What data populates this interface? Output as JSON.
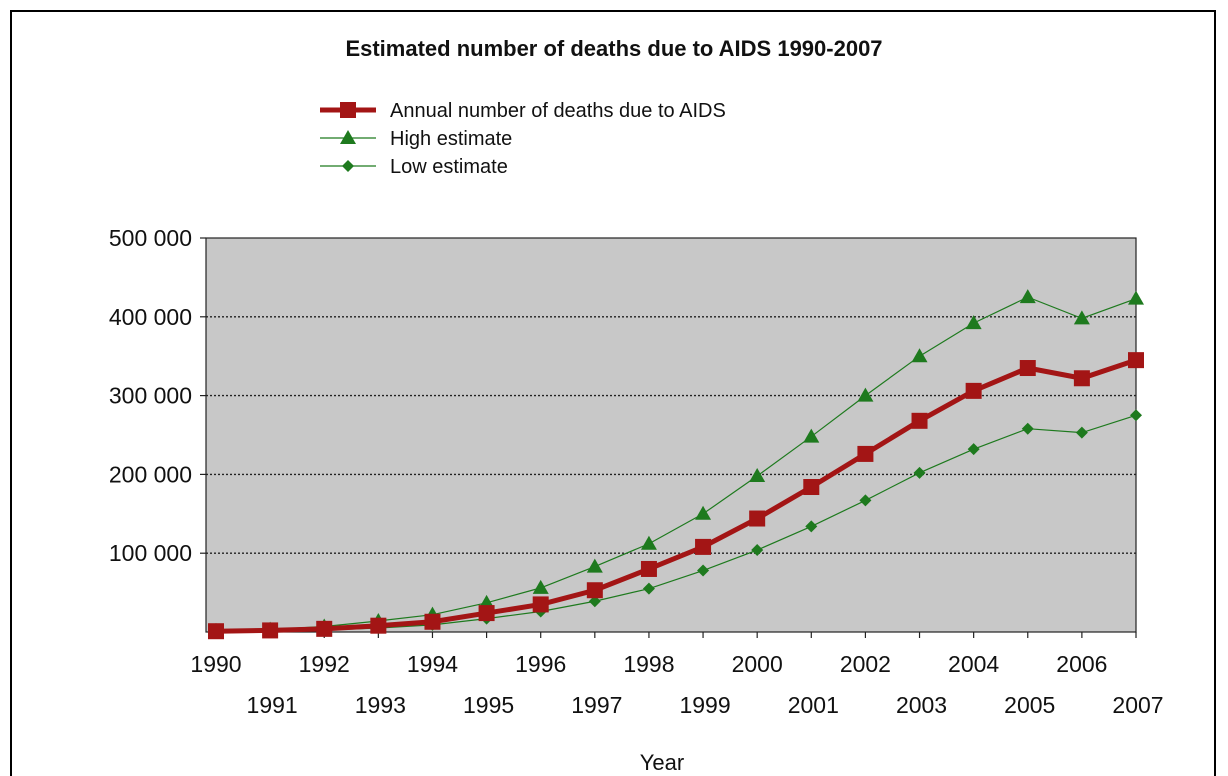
{
  "chart_data": {
    "type": "line",
    "title": "Estimated number of deaths due to AIDS 1990-2007",
    "xlabel": "Year",
    "ylabel": "",
    "ylim": [
      0,
      500000
    ],
    "x": [
      1990,
      1991,
      1992,
      1993,
      1994,
      1995,
      1996,
      1997,
      1998,
      1999,
      2000,
      2001,
      2002,
      2003,
      2004,
      2005,
      2006,
      2007
    ],
    "x_tick_labels_upper": [
      "1990",
      "1992",
      "1994",
      "1996",
      "1998",
      "2000",
      "2002",
      "2004",
      "2006"
    ],
    "x_tick_labels_lower": [
      "1991",
      "1993",
      "1995",
      "1997",
      "1999",
      "2001",
      "2003",
      "2005",
      "2007"
    ],
    "y_tick_labels": [
      "100 000",
      "200 000",
      "300 000",
      "400 000",
      "500 000"
    ],
    "y_ticks": [
      100000,
      200000,
      300000,
      400000,
      500000
    ],
    "grid": "horizontal dotted",
    "legend_position": "top",
    "plot_background": "#c8c8c8",
    "series": [
      {
        "name": "Annual number of deaths due to AIDS",
        "color": "#a31515",
        "marker": "square",
        "values": [
          1000,
          2000,
          4000,
          8000,
          13000,
          24000,
          35000,
          53000,
          80000,
          108000,
          144000,
          184000,
          226000,
          268000,
          306000,
          335000,
          322000,
          345000
        ]
      },
      {
        "name": "High estimate",
        "color": "#1e7a1e",
        "marker": "triangle",
        "values": [
          1500,
          3000,
          7000,
          14000,
          22000,
          37000,
          56000,
          83000,
          112000,
          150000,
          198000,
          248000,
          300000,
          350000,
          392000,
          425000,
          398000,
          423000
        ]
      },
      {
        "name": "Low estimate",
        "color": "#1e7a1e",
        "marker": "diamond",
        "values": [
          500,
          1000,
          2500,
          5000,
          9000,
          17000,
          26000,
          39000,
          55000,
          78000,
          104000,
          134000,
          167000,
          202000,
          232000,
          258000,
          253000,
          275000
        ]
      }
    ]
  }
}
